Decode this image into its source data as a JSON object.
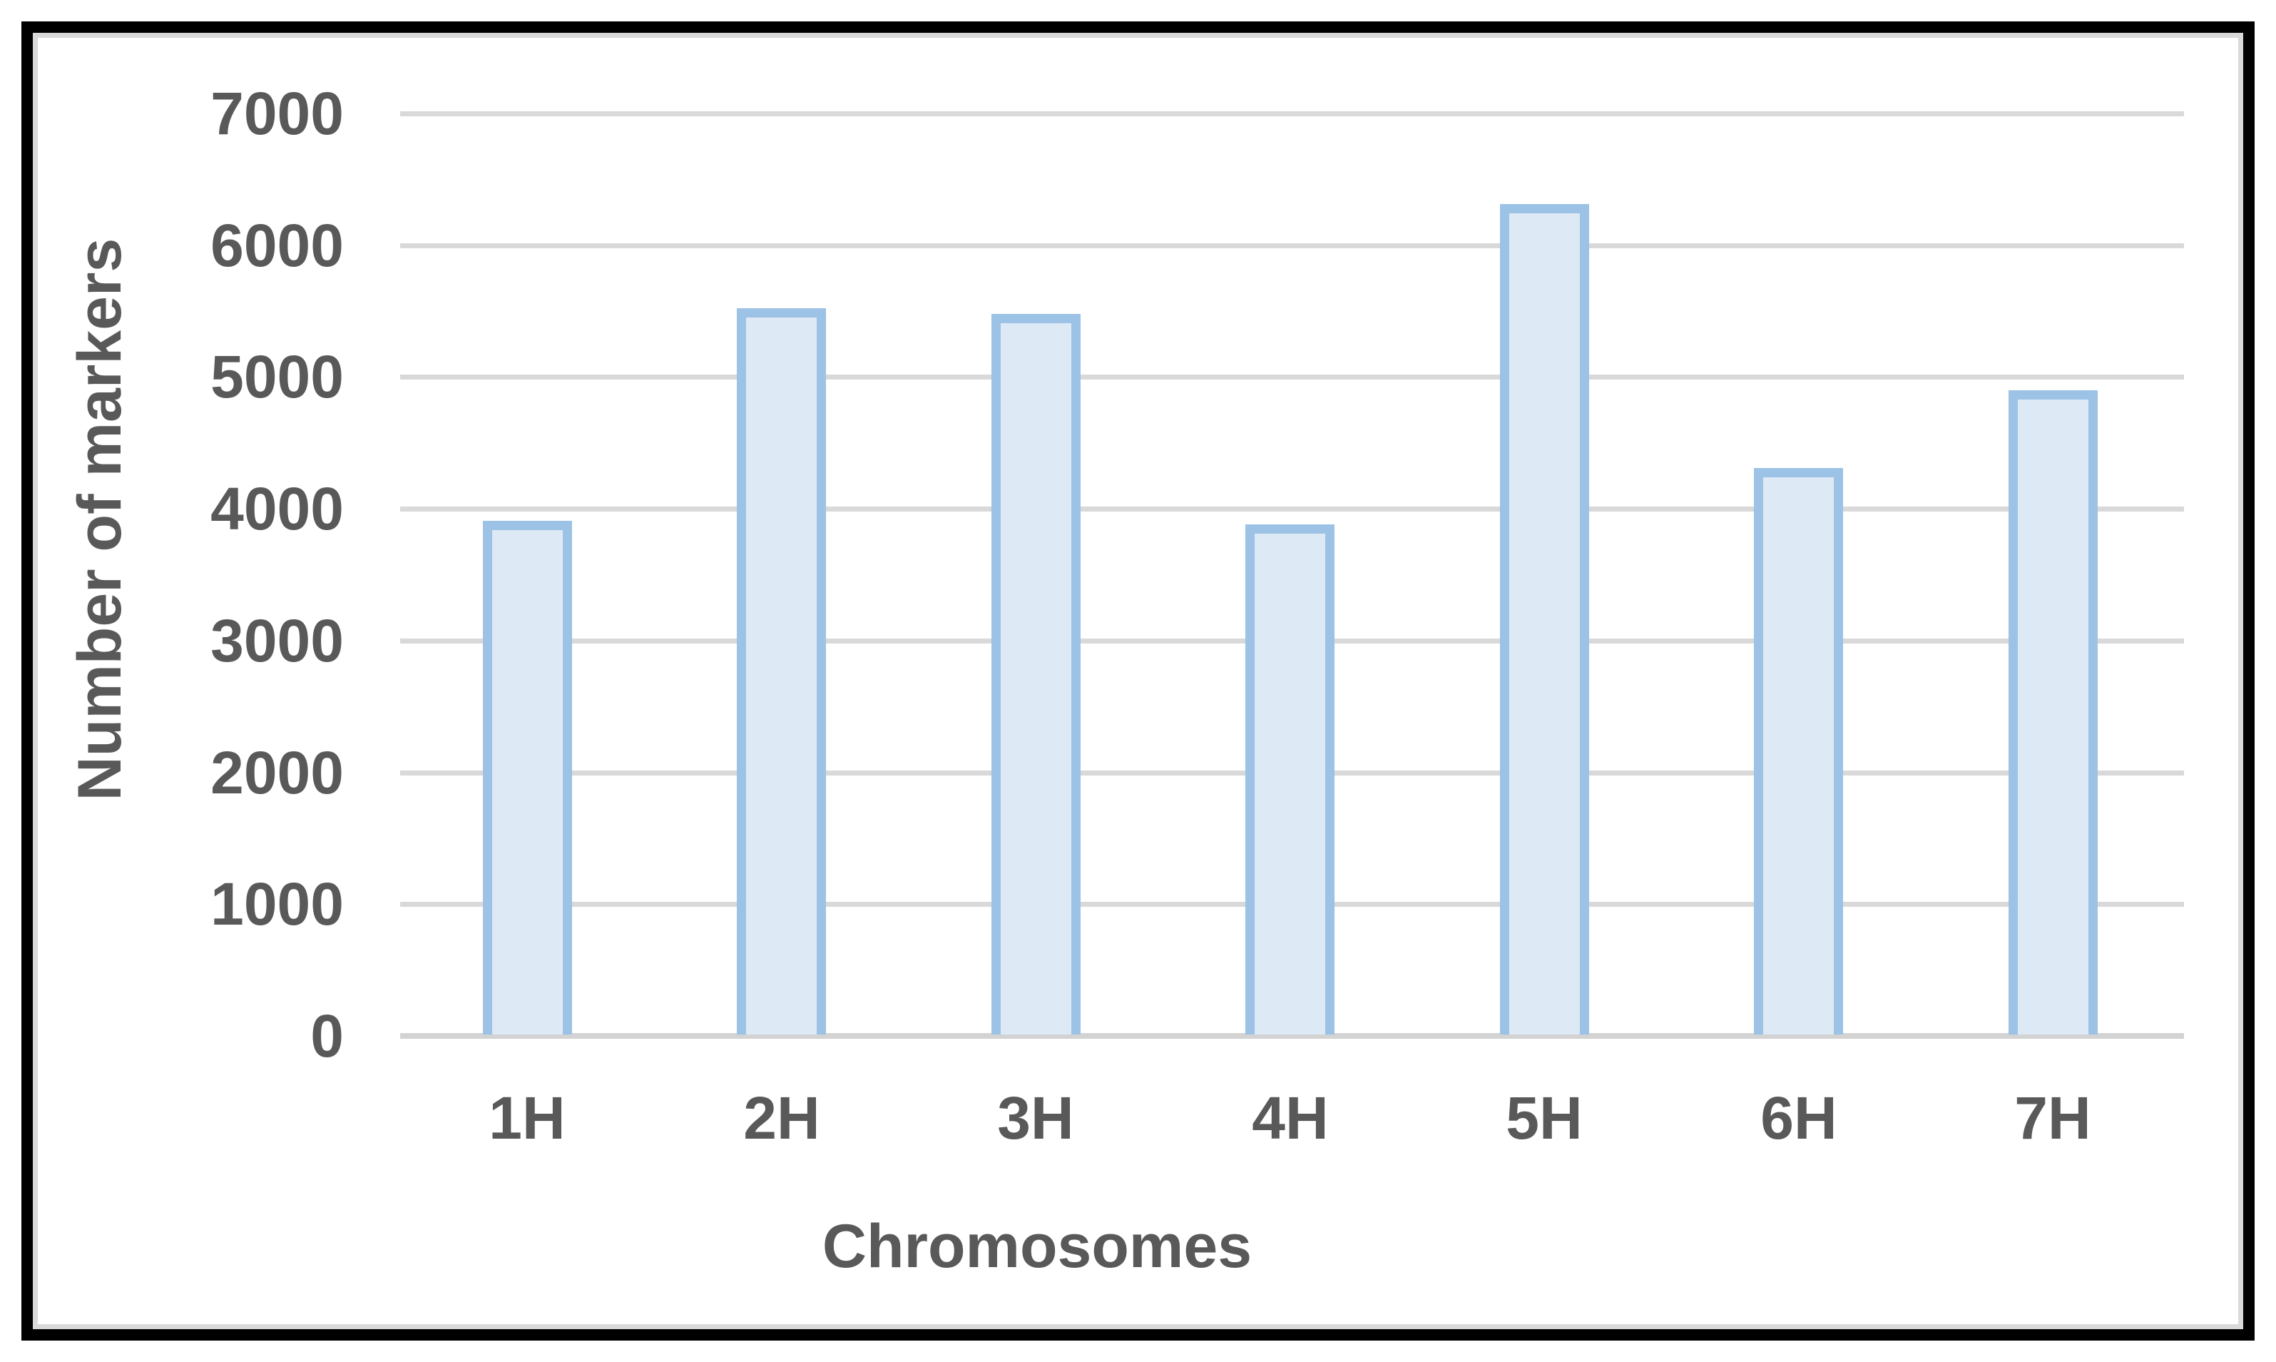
{
  "chart_data": {
    "type": "bar",
    "title": "",
    "categories": [
      "1H",
      "2H",
      "3H",
      "4H",
      "5H",
      "6H",
      "7H"
    ],
    "values": [
      3910,
      5520,
      5480,
      3880,
      6310,
      4310,
      4900
    ],
    "xlabel": "Chromosomes",
    "ylabel": "Number of markers",
    "ylim": [
      0,
      7000
    ],
    "ytick_step": 1000,
    "yticks": [
      0,
      1000,
      2000,
      3000,
      4000,
      5000,
      6000,
      7000
    ],
    "grid": "horizontal gridlines on",
    "legend": "none",
    "colors": {
      "bar_fill": "#DEE9F6",
      "bar_border": "#9CC2E5",
      "gridline": "#D9D9D9",
      "axis_line": "#D3D3D3",
      "text": "#595959",
      "frame_border": "#000000",
      "frame_inner_line": "#D9D9D9",
      "background": "#FFFFFF"
    }
  }
}
